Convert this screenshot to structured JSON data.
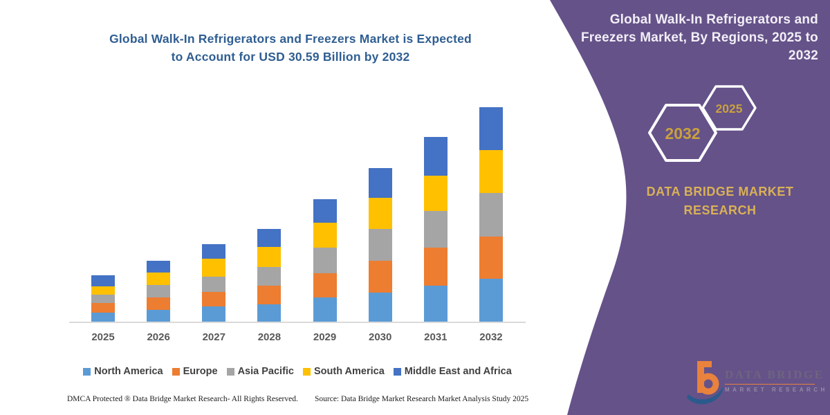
{
  "colors": {
    "purple": "#655289",
    "gold": "#c9a13e",
    "gold2": "#d9b156",
    "title_blue": "#2f5e92",
    "heading_white": "#f2eff7",
    "axis_gray": "#d9d9d9",
    "label_gray": "#595959",
    "legend_gray": "#3f3f3f"
  },
  "left_panel": {
    "title_line1": "Global Walk-In Refrigerators and Freezers Market is Expected",
    "title_line2": "to Account for USD 30.59 Billion by 2032"
  },
  "chart_data": {
    "type": "bar",
    "stacked": true,
    "title": "Global Walk-In Refrigerators and Freezers Market is Expected to Account for USD 30.59 Billion by 2032",
    "unit": "USD Billion",
    "categories": [
      "2025",
      "2026",
      "2027",
      "2028",
      "2029",
      "2030",
      "2031",
      "2032"
    ],
    "series": [
      {
        "name": "North America",
        "color": "#5B9BD5",
        "values": [
          1.24,
          1.72,
          2.15,
          2.48,
          3.45,
          4.18,
          5.1,
          6.12
        ]
      },
      {
        "name": "Europe",
        "color": "#ED7D31",
        "values": [
          1.38,
          1.78,
          2.14,
          2.64,
          3.45,
          4.48,
          5.42,
          5.98
        ]
      },
      {
        "name": "Asia Pacific",
        "color": "#A5A5A5",
        "values": [
          1.25,
          1.74,
          2.15,
          2.7,
          3.62,
          4.56,
          5.32,
          6.26
        ]
      },
      {
        "name": "South America",
        "color": "#FFC000",
        "values": [
          1.15,
          1.81,
          2.53,
          2.8,
          3.61,
          4.47,
          5.03,
          6.15
        ]
      },
      {
        "name": "Middle East and Africa",
        "color": "#4472C4",
        "values": [
          1.54,
          1.65,
          2.05,
          2.64,
          3.35,
          4.24,
          5.52,
          6.08
        ]
      }
    ],
    "totals": [
      6.56,
      8.7,
      11.02,
      13.26,
      17.48,
      21.93,
      26.39,
      30.59
    ],
    "ylim": [
      0,
      31
    ],
    "gridlines": false,
    "y_axis_visible": false,
    "legend_position": "bottom",
    "highlight_value": "USD 30.59 Billion by 2032"
  },
  "footer": {
    "dmca": "DMCA Protected ® Data Bridge Market Research-  All Rights Reserved.",
    "source": "Source: Data Bridge Market Research  Market Analysis Study 2025"
  },
  "right_panel": {
    "heading": "Global Walk-In Refrigerators and Freezers Market, By Regions, 2025 to 2032",
    "hexagons": [
      {
        "label": "2032"
      },
      {
        "label": "2025"
      }
    ],
    "brand_line1": "DATA BRIDGE MARKET",
    "brand_line2": "RESEARCH",
    "logo": {
      "title": "DATA BRIDGE",
      "subtitle": "MARKET RESEARCH"
    }
  }
}
